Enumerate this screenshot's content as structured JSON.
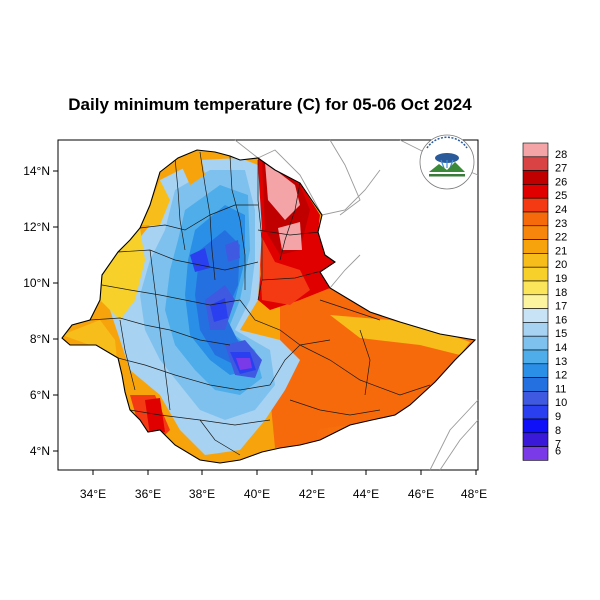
{
  "title": "Daily minimum temperature (C) for 05-06 Oct 2024",
  "x_axis": {
    "ticks": [
      "34°E",
      "36°E",
      "38°E",
      "40°E",
      "42°E",
      "44°E",
      "46°E",
      "48°E"
    ]
  },
  "y_axis": {
    "ticks": [
      "4°N",
      "6°N",
      "8°N",
      "10°N",
      "12°N",
      "14°N"
    ]
  },
  "colorbar": {
    "levels": [
      "28",
      "27",
      "26",
      "25",
      "24",
      "23",
      "22",
      "21",
      "20",
      "19",
      "18",
      "17",
      "16",
      "15",
      "14",
      "13",
      "12",
      "11",
      "10",
      "9",
      "8",
      "7",
      "6"
    ],
    "colors": [
      "#f4a3a6",
      "#d94344",
      "#c00000",
      "#e00000",
      "#f43a12",
      "#f76a0c",
      "#f7870c",
      "#f7a40c",
      "#f7bd1a",
      "#f7d02a",
      "#fbe55a",
      "#fdf4a0",
      "#c9e3f6",
      "#a7d2f2",
      "#7fc1ee",
      "#4faeea",
      "#2a8fe6",
      "#2570e0",
      "#3f5ae0",
      "#2a40f0",
      "#0f10f8",
      "#3a1ad8",
      "#7a3ae8"
    ]
  },
  "logo": {
    "icon": "meteorology-agency-logo"
  }
}
